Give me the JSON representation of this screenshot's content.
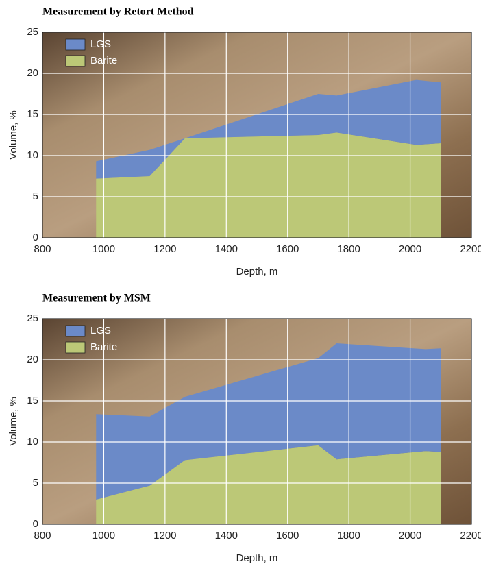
{
  "chart_data": [
    {
      "type": "area",
      "stacked": true,
      "title": "Measurement by Retort Method",
      "xlabel": "Depth, m",
      "ylabel": "Volume, %",
      "x": [
        975,
        1150,
        1265,
        1700,
        1760,
        2020,
        2100
      ],
      "series": [
        {
          "name": "LGS",
          "color": "#6b8ac8",
          "values": [
            2.1,
            3.2,
            0,
            5.0,
            4.5,
            7.9,
            7.4
          ]
        },
        {
          "name": "Barite",
          "color": "#bcc877",
          "values": [
            7.2,
            7.5,
            12.1,
            12.5,
            12.8,
            11.3,
            11.5
          ]
        }
      ],
      "xlim": [
        800,
        2200
      ],
      "xticks": [
        800,
        1000,
        1200,
        1400,
        1600,
        1800,
        2000,
        2200
      ],
      "ylim": [
        0,
        25
      ],
      "yticks": [
        0,
        5,
        10,
        15,
        20,
        25
      ],
      "grid": true,
      "legend": "upper left"
    },
    {
      "type": "area",
      "stacked": true,
      "title": "Measurement by MSM",
      "xlabel": "Depth, m",
      "ylabel": "Volume, %",
      "x": [
        975,
        1150,
        1265,
        1700,
        1760,
        2050,
        2100
      ],
      "series": [
        {
          "name": "LGS",
          "color": "#6b8ac8",
          "values": [
            10.4,
            8.4,
            7.7,
            10.6,
            14.1,
            12.4,
            12.6
          ]
        },
        {
          "name": "Barite",
          "color": "#bcc877",
          "values": [
            3.0,
            4.7,
            7.8,
            9.6,
            7.9,
            8.9,
            8.8
          ]
        }
      ],
      "xlim": [
        800,
        2200
      ],
      "xticks": [
        800,
        1000,
        1200,
        1400,
        1600,
        1800,
        2000,
        2200
      ],
      "ylim": [
        0,
        25
      ],
      "yticks": [
        0,
        5,
        10,
        15,
        20,
        25
      ],
      "grid": true,
      "legend": "upper left"
    }
  ]
}
